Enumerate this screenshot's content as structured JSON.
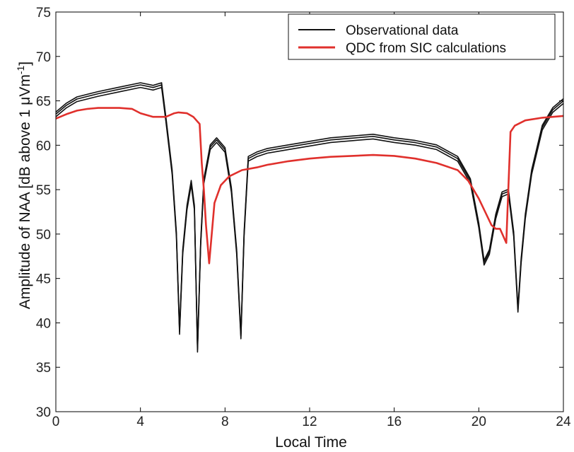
{
  "chart_data": {
    "type": "line",
    "xlabel": "Local Time",
    "ylabel": "Amplitude of NAA [dB above 1 μVm",
    "ylabel_superscript": "-1",
    "ylabel_close": "]",
    "xlim": [
      0,
      24
    ],
    "ylim": [
      30,
      75
    ],
    "x_ticks": [
      "0",
      "4",
      "8",
      "12",
      "16",
      "20",
      "24"
    ],
    "y_ticks": [
      "30",
      "35",
      "40",
      "45",
      "50",
      "55",
      "60",
      "65",
      "70",
      "75"
    ],
    "grid": false,
    "legend_position": "top-right",
    "colors": {
      "observed": "#111111",
      "qdc": "#e0302c"
    },
    "series": [
      {
        "name": "Observational data",
        "x": [
          0,
          0.5,
          1,
          2,
          3,
          4,
          4.6,
          5.0,
          5.2,
          5.5,
          5.7,
          5.85,
          6.0,
          6.2,
          6.4,
          6.55,
          6.7,
          6.85,
          7.0,
          7.3,
          7.6,
          8.0,
          8.3,
          8.55,
          8.75,
          8.9,
          9.1,
          9.5,
          10,
          11,
          12,
          13,
          14,
          15,
          16,
          17,
          18,
          19,
          19.6,
          20.0,
          20.25,
          20.5,
          20.8,
          21.1,
          21.4,
          21.65,
          21.85,
          22.0,
          22.2,
          22.5,
          23,
          23.5,
          24
        ],
        "values": [
          63.5,
          64.5,
          65.2,
          65.8,
          66.3,
          66.8,
          66.5,
          66.8,
          63,
          57,
          50,
          39,
          48,
          53,
          55.8,
          53,
          37,
          49,
          56,
          59.8,
          60.6,
          59.5,
          55,
          48,
          38.5,
          50,
          58.5,
          59,
          59.4,
          59.8,
          60.2,
          60.6,
          60.8,
          61,
          60.6,
          60.3,
          59.8,
          58.5,
          56,
          51,
          46.8,
          48,
          52,
          54.5,
          54.8,
          50,
          41.5,
          47,
          52,
          57,
          62,
          64,
          65
        ]
      },
      {
        "name": "QDC from SIC calculations",
        "x": [
          0,
          0.5,
          1.0,
          1.5,
          2.0,
          3.0,
          3.6,
          4.0,
          4.6,
          5.2,
          5.6,
          5.8,
          6.2,
          6.5,
          6.65,
          6.8,
          6.9,
          7.0,
          7.1,
          7.25,
          7.5,
          7.8,
          8.2,
          8.8,
          9.5,
          10,
          11,
          12,
          13,
          14,
          15,
          16,
          17,
          18,
          19,
          19.5,
          20.0,
          20.3,
          20.6,
          20.8,
          21.0,
          21.3,
          21.5,
          21.7,
          22.2,
          23,
          24
        ],
        "values": [
          63.0,
          63.5,
          63.9,
          64.1,
          64.2,
          64.2,
          64.1,
          63.6,
          63.2,
          63.2,
          63.6,
          63.7,
          63.6,
          63.2,
          62.8,
          62.4,
          58,
          55,
          51,
          46.7,
          53.5,
          55.5,
          56.5,
          57.2,
          57.5,
          57.8,
          58.2,
          58.5,
          58.7,
          58.8,
          58.9,
          58.8,
          58.5,
          58.0,
          57.2,
          56.0,
          54.0,
          52.5,
          51.0,
          50.6,
          50.6,
          49.0,
          61.5,
          62.2,
          62.8,
          63.1,
          63.3
        ]
      }
    ]
  }
}
